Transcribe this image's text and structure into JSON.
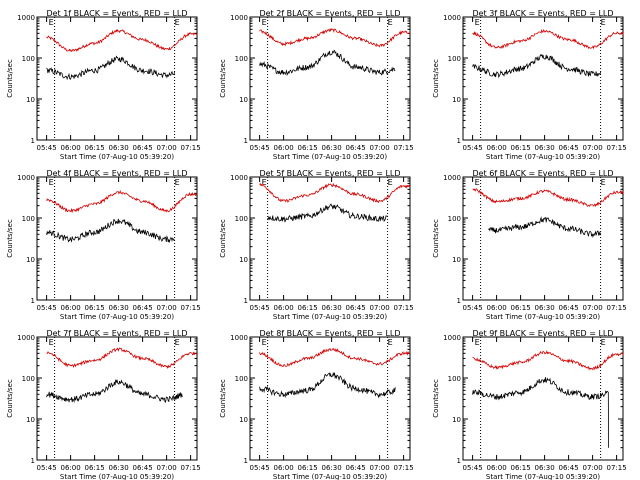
{
  "colors": {
    "events": "#000000",
    "lld": "#d40000",
    "axis": "#000000",
    "background": "#ffffff"
  },
  "x_ticks": [
    "05:45",
    "06:00",
    "06:15",
    "06:30",
    "06:45",
    "07:00",
    "07:15"
  ],
  "y_ticks": [
    "1",
    "10",
    "100",
    "1000"
  ],
  "marker_label": "E",
  "chart_data": [
    {
      "type": "line",
      "title": "Det 1f BLACK = Events, RED = LLD",
      "xlabel": "Start Time (07-Aug-10 05:39:20)",
      "ylabel": "Counts/sec",
      "yscale": "log",
      "ylim": [
        1,
        1000
      ],
      "x": [
        "05:45",
        "06:00",
        "06:15",
        "06:30",
        "06:45",
        "07:00",
        "07:15"
      ],
      "vlines": [
        "05:50",
        "07:05"
      ],
      "series": [
        {
          "name": "LLD",
          "color": "#d40000",
          "values": [
            320,
            150,
            230,
            460,
            280,
            165,
            380
          ]
        },
        {
          "name": "Events",
          "color": "#000000",
          "x_end": "07:05",
          "values": [
            50,
            35,
            50,
            95,
            50,
            38,
            55
          ]
        }
      ]
    },
    {
      "type": "line",
      "title": "Det 2f BLACK = Events, RED = LLD",
      "xlabel": "Start Time (07-Aug-10 05:39:20)",
      "ylabel": "Counts/sec",
      "yscale": "log",
      "ylim": [
        1,
        1000
      ],
      "x": [
        "05:45",
        "06:00",
        "06:15",
        "06:30",
        "06:45",
        "07:00",
        "07:15"
      ],
      "vlines": [
        "05:50",
        "07:05"
      ],
      "series": [
        {
          "name": "LLD",
          "color": "#d40000",
          "values": [
            450,
            220,
            300,
            480,
            300,
            200,
            420
          ]
        },
        {
          "name": "Events",
          "color": "#000000",
          "x_end": "07:10",
          "values": [
            70,
            45,
            60,
            140,
            60,
            45,
            60
          ]
        }
      ]
    },
    {
      "type": "line",
      "title": "Det 3f BLACK = Events, RED = LLD",
      "xlabel": "Start Time (07-Aug-10 05:39:20)",
      "ylabel": "Counts/sec",
      "yscale": "log",
      "ylim": [
        1,
        1000
      ],
      "x": [
        "05:45",
        "06:00",
        "06:15",
        "06:30",
        "06:45",
        "07:00",
        "07:15"
      ],
      "vlines": [
        "05:50",
        "07:05"
      ],
      "series": [
        {
          "name": "LLD",
          "color": "#d40000",
          "values": [
            400,
            180,
            260,
            450,
            280,
            180,
            400
          ]
        },
        {
          "name": "Events",
          "color": "#000000",
          "x_end": "07:05",
          "values": [
            60,
            40,
            55,
            110,
            55,
            40,
            55
          ]
        }
      ]
    },
    {
      "type": "line",
      "title": "Det 4f BLACK = Events, RED = LLD",
      "xlabel": "Start Time (07-Aug-10 05:39:20)",
      "ylabel": "Counts/sec",
      "yscale": "log",
      "ylim": [
        1,
        1000
      ],
      "x": [
        "05:45",
        "06:00",
        "06:15",
        "06:30",
        "06:45",
        "07:00",
        "07:15"
      ],
      "vlines": [
        "05:50",
        "07:05"
      ],
      "series": [
        {
          "name": "LLD",
          "color": "#d40000",
          "values": [
            280,
            150,
            220,
            420,
            260,
            150,
            380
          ]
        },
        {
          "name": "Events",
          "color": "#000000",
          "x_end": "07:05",
          "values": [
            45,
            30,
            45,
            85,
            45,
            30,
            45
          ]
        }
      ]
    },
    {
      "type": "line",
      "title": "Det 5f BLACK = Events, RED = LLD",
      "xlabel": "Start Time (07-Aug-10 05:39:20)",
      "ylabel": "Counts/sec",
      "yscale": "log",
      "ylim": [
        1,
        1000
      ],
      "x": [
        "05:45",
        "06:00",
        "06:15",
        "06:30",
        "06:45",
        "07:00",
        "07:15"
      ],
      "vlines": [
        "05:50",
        "07:05"
      ],
      "series": [
        {
          "name": "LLD",
          "color": "#d40000",
          "values": [
            650,
            260,
            360,
            640,
            380,
            260,
            600
          ]
        },
        {
          "name": "Events",
          "color": "#000000",
          "x_start": "05:50",
          "x_end": "07:05",
          "values": [
            110,
            95,
            110,
            190,
            110,
            95,
            110
          ]
        }
      ]
    },
    {
      "type": "line",
      "title": "Det 6f BLACK = Events, RED = LLD",
      "xlabel": "Start Time (07-Aug-10 05:39:20)",
      "ylabel": "Counts/sec",
      "yscale": "log",
      "ylim": [
        1,
        1000
      ],
      "x": [
        "05:45",
        "06:00",
        "06:15",
        "06:30",
        "06:45",
        "07:00",
        "07:15"
      ],
      "vlines": [
        "05:50",
        "07:05"
      ],
      "series": [
        {
          "name": "LLD",
          "color": "#d40000",
          "values": [
            500,
            250,
            300,
            450,
            280,
            200,
            420
          ]
        },
        {
          "name": "Events",
          "color": "#000000",
          "x_start": "05:55",
          "x_end": "07:05",
          "values": [
            50,
            50,
            60,
            90,
            55,
            40,
            55
          ]
        }
      ]
    },
    {
      "type": "line",
      "title": "Det 7f BLACK = Events, RED = LLD",
      "xlabel": "Start Time (07-Aug-10 05:39:20)",
      "ylabel": "Counts/sec",
      "yscale": "log",
      "ylim": [
        1,
        1000
      ],
      "x": [
        "05:45",
        "06:00",
        "06:15",
        "06:30",
        "06:45",
        "07:00",
        "07:15"
      ],
      "vlines": [
        "05:50",
        "07:05"
      ],
      "series": [
        {
          "name": "LLD",
          "color": "#d40000",
          "values": [
            420,
            200,
            270,
            500,
            300,
            190,
            400
          ]
        },
        {
          "name": "Events",
          "color": "#000000",
          "x_end": "07:10",
          "values": [
            40,
            30,
            40,
            80,
            40,
            30,
            45
          ]
        }
      ]
    },
    {
      "type": "line",
      "title": "Det 8f BLACK = Events, RED = LLD",
      "xlabel": "Start Time (07-Aug-10 05:39:20)",
      "ylabel": "Counts/sec",
      "yscale": "log",
      "ylim": [
        1,
        1000
      ],
      "x": [
        "05:45",
        "06:00",
        "06:15",
        "06:30",
        "06:45",
        "07:00",
        "07:15"
      ],
      "vlines": [
        "05:50",
        "07:05"
      ],
      "series": [
        {
          "name": "LLD",
          "color": "#d40000",
          "values": [
            400,
            200,
            300,
            500,
            300,
            220,
            400
          ]
        },
        {
          "name": "Events",
          "color": "#000000",
          "x_end": "07:10",
          "values": [
            55,
            40,
            50,
            120,
            55,
            40,
            55
          ]
        }
      ]
    },
    {
      "type": "line",
      "title": "Det 9f BLACK = Events, RED = LLD",
      "xlabel": "Start Time (07-Aug-10 05:39:20)",
      "ylabel": "Counts/sec",
      "yscale": "log",
      "ylim": [
        1,
        1000
      ],
      "x": [
        "05:45",
        "06:00",
        "06:15",
        "06:30",
        "06:45",
        "07:00",
        "07:15"
      ],
      "vlines": [
        "05:50",
        "07:05"
      ],
      "series": [
        {
          "name": "LLD",
          "color": "#d40000",
          "values": [
            300,
            180,
            240,
            420,
            260,
            170,
            380
          ]
        },
        {
          "name": "Events",
          "color": "#000000",
          "x_end": "07:10",
          "values": [
            45,
            35,
            45,
            90,
            45,
            35,
            45
          ],
          "final_drop": 2
        }
      ]
    }
  ]
}
